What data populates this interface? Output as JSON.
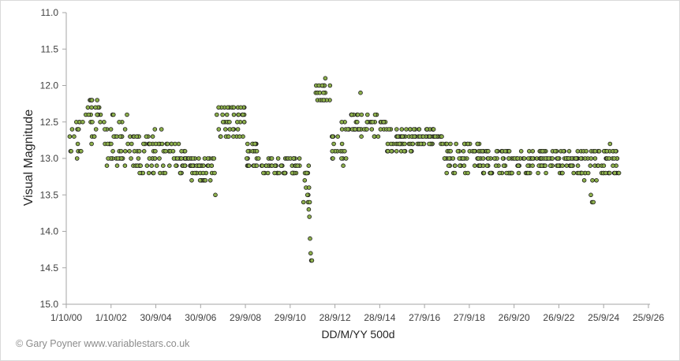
{
  "credit": "© Gary Poyner  www.variablestars.co.uk",
  "chart_data": {
    "type": "scatter",
    "title": "",
    "xlabel": "DD/M/YY  500d",
    "ylabel": "Visual Magnitude",
    "x_ticks": [
      "1/10/00",
      "1/10/02",
      "30/9/04",
      "30/9/06",
      "29/9/08",
      "29/9/10",
      "28/9/12",
      "28/9/14",
      "27/9/16",
      "27/9/18",
      "26/9/20",
      "26/9/22",
      "25/9/24",
      "25/9/26"
    ],
    "xlim_days": [
      0,
      9125
    ],
    "tick_interval_days": 500,
    "y_ticks": [
      "11.0",
      "11.5",
      "12.0",
      "12.5",
      "13.0",
      "13.5",
      "14.0",
      "14.5",
      "15.0"
    ],
    "ylim": [
      11.0,
      15.0
    ],
    "y_inverted": true,
    "grid": false,
    "legend": "none",
    "marker_fill": "#8db04c",
    "marker_edge": "#1a1a1a",
    "x_unit": "days since 1/10/00",
    "segments": [
      {
        "x0": 30,
        "x1": 250,
        "mid": 12.7,
        "amp": 0.3,
        "n": 16
      },
      {
        "x0": 250,
        "x1": 600,
        "mid": 12.5,
        "amp": 0.3,
        "n": 24
      },
      {
        "x0": 600,
        "x1": 1000,
        "mid": 12.75,
        "amp": 0.35,
        "n": 40
      },
      {
        "x0": 1000,
        "x1": 1500,
        "mid": 12.9,
        "amp": 0.3,
        "n": 50
      },
      {
        "x0": 1500,
        "x1": 1950,
        "mid": 13.0,
        "amp": 0.2,
        "n": 45
      },
      {
        "x0": 1950,
        "x1": 2350,
        "mid": 13.15,
        "amp": 0.15,
        "n": 40
      },
      {
        "x0": 2350,
        "x1": 2800,
        "mid": 12.5,
        "amp": 0.25,
        "n": 45
      },
      {
        "x0": 2800,
        "x1": 3000,
        "mid": 12.95,
        "amp": 0.2,
        "n": 22
      },
      {
        "x0": 3000,
        "x1": 3600,
        "mid": 13.1,
        "amp": 0.15,
        "n": 50
      },
      {
        "x0": 3600,
        "x1": 3800,
        "mid": 13.3,
        "amp": 0.3,
        "n": 14
      },
      {
        "x0": 3900,
        "x1": 4150,
        "mid": 12.1,
        "amp": 0.15,
        "n": 18
      },
      {
        "x0": 4150,
        "x1": 4450,
        "mid": 12.8,
        "amp": 0.3,
        "n": 25
      },
      {
        "x0": 4450,
        "x1": 5000,
        "mid": 12.55,
        "amp": 0.15,
        "n": 50
      },
      {
        "x0": 5000,
        "x1": 5400,
        "mid": 12.75,
        "amp": 0.2,
        "n": 45
      },
      {
        "x0": 5400,
        "x1": 5900,
        "mid": 12.7,
        "amp": 0.1,
        "n": 55
      },
      {
        "x0": 5900,
        "x1": 6500,
        "mid": 13.0,
        "amp": 0.2,
        "n": 60
      },
      {
        "x0": 6500,
        "x1": 7000,
        "mid": 13.05,
        "amp": 0.2,
        "n": 55
      },
      {
        "x0": 7000,
        "x1": 7600,
        "mid": 13.05,
        "amp": 0.15,
        "n": 65
      },
      {
        "x0": 7600,
        "x1": 8000,
        "mid": 13.05,
        "amp": 0.15,
        "n": 45
      },
      {
        "x0": 8000,
        "x1": 8350,
        "mid": 13.1,
        "amp": 0.2,
        "n": 30
      },
      {
        "x0": 8350,
        "x1": 8650,
        "mid": 13.05,
        "amp": 0.2,
        "n": 35
      }
    ],
    "points": [
      [
        370,
        12.2
      ],
      [
        385,
        12.2
      ],
      [
        400,
        12.2
      ],
      [
        950,
        12.4
      ],
      [
        1250,
        12.7
      ],
      [
        1500,
        12.8
      ],
      [
        2330,
        13.5
      ],
      [
        3770,
        13.5
      ],
      [
        3780,
        13.6
      ],
      [
        3790,
        13.7
      ],
      [
        3800,
        13.8
      ],
      [
        3810,
        14.1
      ],
      [
        3820,
        14.3
      ],
      [
        3830,
        14.4
      ],
      [
        3840,
        14.4
      ],
      [
        3805,
        13.6
      ],
      [
        3950,
        12.0
      ],
      [
        4000,
        12.0
      ],
      [
        4050,
        11.9
      ],
      [
        4020,
        12.1
      ],
      [
        4600,
        12.1
      ],
      [
        8200,
        13.5
      ],
      [
        8220,
        13.6
      ],
      [
        8240,
        13.6
      ],
      [
        8500,
        12.8
      ]
    ]
  }
}
